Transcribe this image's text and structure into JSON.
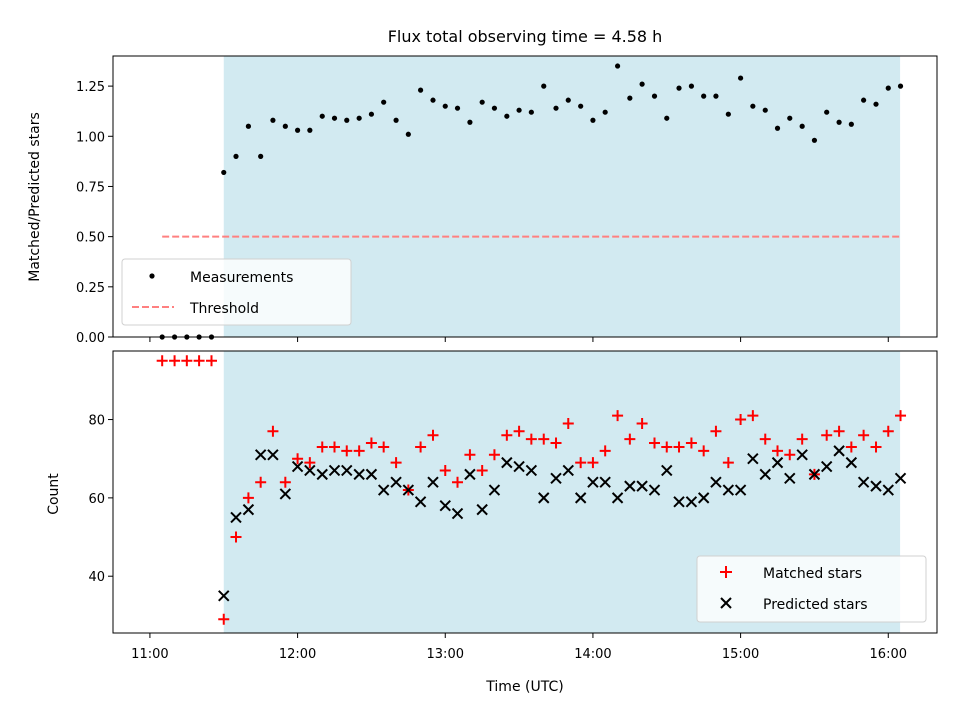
{
  "chart_data": [
    {
      "type": "scatter",
      "title": "Flux total observing time = 4.58 h",
      "xlabel": "",
      "ylabel": "Matched/Predicted stars",
      "xlim": [
        10.75,
        16.33
      ],
      "ylim": [
        0,
        1.4
      ],
      "yticks": [
        0,
        0.25,
        0.5,
        0.75,
        1.0,
        1.25
      ],
      "ytick_labels": [
        "0.00",
        "0.25",
        "0.50",
        "0.75",
        "1.00",
        "1.25"
      ],
      "shaded_span": [
        11.5,
        16.08
      ],
      "shade_color": "#add8e6",
      "legend_position": "lower-left",
      "series": [
        {
          "name": "Measurements",
          "marker": "dot",
          "color": "#000000",
          "x": [
            11.083,
            11.167,
            11.25,
            11.333,
            11.417,
            11.5,
            11.583,
            11.667,
            11.75,
            11.833,
            11.917,
            12.0,
            12.083,
            12.167,
            12.25,
            12.333,
            12.417,
            12.5,
            12.583,
            12.667,
            12.75,
            12.833,
            12.917,
            13.0,
            13.083,
            13.167,
            13.25,
            13.333,
            13.417,
            13.5,
            13.583,
            13.667,
            13.75,
            13.833,
            13.917,
            14.0,
            14.083,
            14.167,
            14.25,
            14.333,
            14.417,
            14.5,
            14.583,
            14.667,
            14.75,
            14.833,
            14.917,
            15.0,
            15.083,
            15.167,
            15.25,
            15.333,
            15.417,
            15.5,
            15.583,
            15.667,
            15.75,
            15.833,
            15.917,
            16.0,
            16.083
          ],
          "y": [
            0.0,
            0.0,
            0.0,
            0.0,
            0.0,
            0.82,
            0.9,
            1.05,
            0.9,
            1.08,
            1.05,
            1.03,
            1.03,
            1.1,
            1.09,
            1.08,
            1.09,
            1.11,
            1.17,
            1.08,
            1.01,
            1.23,
            1.18,
            1.15,
            1.14,
            1.07,
            1.17,
            1.14,
            1.1,
            1.13,
            1.12,
            1.25,
            1.14,
            1.18,
            1.15,
            1.08,
            1.12,
            1.35,
            1.19,
            1.26,
            1.2,
            1.09,
            1.24,
            1.25,
            1.2,
            1.2,
            1.11,
            1.29,
            1.15,
            1.13,
            1.04,
            1.09,
            1.05,
            0.98,
            1.12,
            1.07,
            1.06,
            1.18,
            1.16,
            1.24,
            1.25
          ]
        },
        {
          "name": "Threshold",
          "line": "dashed",
          "color": "#ff8080",
          "x": [
            11.083,
            16.083
          ],
          "y": [
            0.5,
            0.5
          ]
        }
      ]
    },
    {
      "type": "scatter",
      "title": "",
      "xlabel": "Time (UTC)",
      "ylabel": "Count",
      "xlim": [
        10.75,
        16.33
      ],
      "ylim": [
        25.5,
        97.5
      ],
      "xticks": [
        11,
        12,
        13,
        14,
        15,
        16
      ],
      "xtick_labels": [
        "11:00",
        "12:00",
        "13:00",
        "14:00",
        "15:00",
        "16:00"
      ],
      "yticks": [
        40,
        60,
        80
      ],
      "ytick_labels": [
        "40",
        "60",
        "80"
      ],
      "shaded_span": [
        11.5,
        16.08
      ],
      "shade_color": "#add8e6",
      "legend_position": "lower-right",
      "series": [
        {
          "name": "Matched stars",
          "marker": "plus",
          "color": "#ff0000",
          "x": [
            11.083,
            11.167,
            11.25,
            11.333,
            11.417,
            11.5,
            11.583,
            11.667,
            11.75,
            11.833,
            11.917,
            12.0,
            12.083,
            12.167,
            12.25,
            12.333,
            12.417,
            12.5,
            12.583,
            12.667,
            12.75,
            12.833,
            12.917,
            13.0,
            13.083,
            13.167,
            13.25,
            13.333,
            13.417,
            13.5,
            13.583,
            13.667,
            13.75,
            13.833,
            13.917,
            14.0,
            14.083,
            14.167,
            14.25,
            14.333,
            14.417,
            14.5,
            14.583,
            14.667,
            14.75,
            14.833,
            14.917,
            15.0,
            15.083,
            15.167,
            15.25,
            15.333,
            15.417,
            15.5,
            15.583,
            15.667,
            15.75,
            15.833,
            15.917,
            16.0,
            16.083
          ],
          "y": [
            95,
            95,
            95,
            95,
            95,
            29,
            50,
            60,
            64,
            77,
            64,
            70,
            69,
            73,
            73,
            72,
            72,
            74,
            73,
            69,
            62,
            73,
            76,
            67,
            64,
            71,
            67,
            71,
            76,
            77,
            75,
            75,
            74,
            79,
            69,
            69,
            72,
            81,
            75,
            79,
            74,
            73,
            73,
            74,
            72,
            77,
            69,
            80,
            81,
            75,
            72,
            71,
            75,
            66,
            76,
            77,
            73,
            76,
            73,
            77,
            81
          ]
        },
        {
          "name": "Predicted stars",
          "marker": "x",
          "color": "#000000",
          "x": [
            11.5,
            11.583,
            11.667,
            11.75,
            11.833,
            11.917,
            12.0,
            12.083,
            12.167,
            12.25,
            12.333,
            12.417,
            12.5,
            12.583,
            12.667,
            12.75,
            12.833,
            12.917,
            13.0,
            13.083,
            13.167,
            13.25,
            13.333,
            13.417,
            13.5,
            13.583,
            13.667,
            13.75,
            13.833,
            13.917,
            14.0,
            14.083,
            14.167,
            14.25,
            14.333,
            14.417,
            14.5,
            14.583,
            14.667,
            14.75,
            14.833,
            14.917,
            15.0,
            15.083,
            15.167,
            15.25,
            15.333,
            15.417,
            15.5,
            15.583,
            15.667,
            15.75,
            15.833,
            15.917,
            16.0,
            16.083
          ],
          "y": [
            35,
            55,
            57,
            71,
            71,
            61,
            68,
            67,
            66,
            67,
            67,
            66,
            66,
            62,
            64,
            62,
            59,
            64,
            58,
            56,
            66,
            57,
            62,
            69,
            68,
            67,
            60,
            65,
            67,
            60,
            64,
            64,
            60,
            63,
            63,
            62,
            67,
            59,
            59,
            60,
            64,
            62,
            62,
            70,
            66,
            69,
            65,
            71,
            66,
            68,
            72,
            69,
            64,
            63,
            62,
            65
          ]
        }
      ]
    }
  ]
}
